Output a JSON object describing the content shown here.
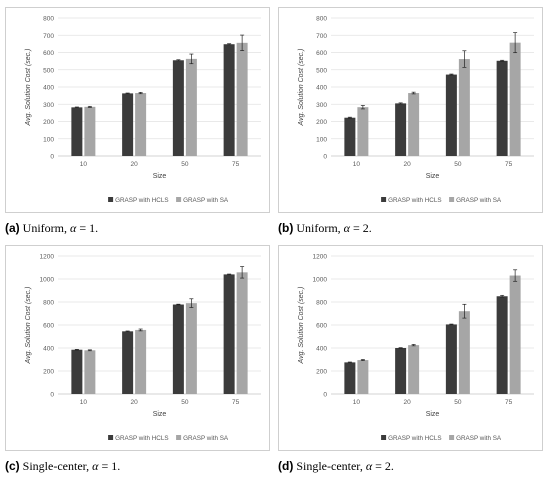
{
  "colors": {
    "hcls": "#3b3b3b",
    "sa": "#a6a6a6",
    "grid": "#e2e2e2",
    "axis": "#c4c4c4",
    "tick": "#595959"
  },
  "captions": [
    {
      "label": "(a)",
      "text": " Uniform, ",
      "alpha": "α",
      "rest": " = 1."
    },
    {
      "label": "(b)",
      "text": " Uniform, ",
      "alpha": "α",
      "rest": " = 2."
    },
    {
      "label": "(c)",
      "text": " Single-center, ",
      "alpha": "α",
      "rest": " = 1."
    },
    {
      "label": "(d)",
      "text": " Single-center, ",
      "alpha": "α",
      "rest": " = 2."
    }
  ],
  "chart_data": [
    {
      "type": "bar",
      "xlabel": "Size",
      "ylabel": "Avg. Solution Cost (sec.)",
      "categories": [
        "10",
        "20",
        "50",
        "75"
      ],
      "ylim": [
        0,
        800
      ],
      "yticks": [
        0,
        100,
        200,
        300,
        400,
        500,
        600,
        700,
        800
      ],
      "grid": true,
      "legend": "bottom",
      "series": [
        {
          "name": "GRASP with HCLS",
          "values": [
            282,
            363,
            555,
            648
          ],
          "errors": [
            2,
            2,
            3,
            3
          ]
        },
        {
          "name": "GRASP with SA",
          "values": [
            285,
            365,
            563,
            656
          ],
          "errors": [
            3,
            4,
            28,
            45
          ]
        }
      ]
    },
    {
      "type": "bar",
      "xlabel": "Size",
      "ylabel": "Avg. Solution Cost (sec.)",
      "categories": [
        "10",
        "20",
        "50",
        "75"
      ],
      "ylim": [
        0,
        800
      ],
      "yticks": [
        0,
        100,
        200,
        300,
        400,
        500,
        600,
        700,
        800
      ],
      "grid": true,
      "legend": "bottom",
      "series": [
        {
          "name": "GRASP with HCLS",
          "values": [
            222,
            305,
            472,
            552
          ],
          "errors": [
            3,
            3,
            3,
            3
          ]
        },
        {
          "name": "GRASP with SA",
          "values": [
            283,
            365,
            562,
            657
          ],
          "errors": [
            10,
            5,
            48,
            58
          ]
        }
      ]
    },
    {
      "type": "bar",
      "xlabel": "Size",
      "ylabel": "Avg. Solution Cost (sec.)",
      "categories": [
        "10",
        "20",
        "50",
        "75"
      ],
      "ylim": [
        0,
        1200
      ],
      "yticks": [
        0,
        200,
        400,
        600,
        800,
        1000,
        1200
      ],
      "grid": true,
      "legend": "bottom",
      "series": [
        {
          "name": "GRASP with HCLS",
          "values": [
            385,
            545,
            778,
            1040
          ],
          "errors": [
            3,
            3,
            3,
            3
          ]
        },
        {
          "name": "GRASP with SA",
          "values": [
            380,
            557,
            790,
            1058
          ],
          "errors": [
            4,
            8,
            38,
            50
          ]
        }
      ]
    },
    {
      "type": "bar",
      "xlabel": "Size",
      "ylabel": "Avg. Solution Cost (sec.)",
      "categories": [
        "10",
        "20",
        "50",
        "75"
      ],
      "ylim": [
        0,
        1200
      ],
      "yticks": [
        0,
        200,
        400,
        600,
        800,
        1000,
        1200
      ],
      "grid": true,
      "legend": "bottom",
      "series": [
        {
          "name": "GRASP with HCLS",
          "values": [
            275,
            400,
            605,
            850
          ],
          "errors": [
            3,
            3,
            3,
            8
          ]
        },
        {
          "name": "GRASP with SA",
          "values": [
            295,
            425,
            720,
            1030
          ],
          "errors": [
            5,
            6,
            60,
            50
          ]
        }
      ]
    }
  ]
}
